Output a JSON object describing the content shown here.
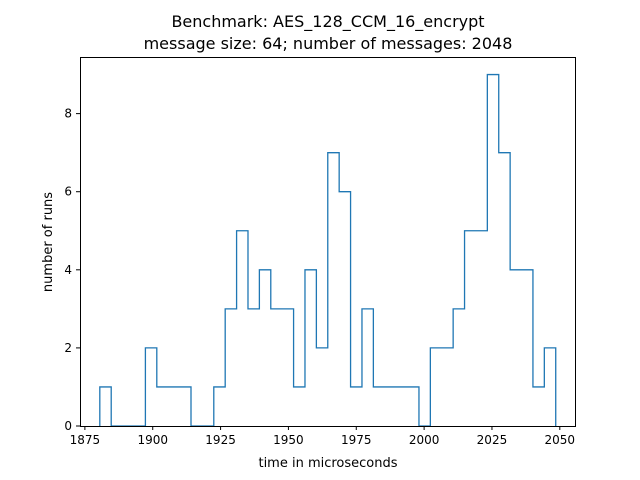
{
  "chart_data": {
    "type": "histogram",
    "title": "Benchmark: AES_128_CCM_16_encrypt",
    "subtitle": "message size: 64; number of messages: 2048",
    "xlabel": "time in microseconds",
    "ylabel": "number of runs",
    "xlim": [
      1873.2,
      2055.6
    ],
    "ylim": [
      0,
      9.45
    ],
    "xticks": [
      1875,
      1900,
      1925,
      1950,
      1975,
      2000,
      2025,
      2050
    ],
    "xtick_labels": [
      "1875",
      "1900",
      "1925",
      "1950",
      "1975",
      "2000",
      "2025",
      "2050"
    ],
    "yticks": [
      0,
      2,
      4,
      6,
      8
    ],
    "ytick_labels": [
      "0",
      "2",
      "4",
      "6",
      "8"
    ],
    "grid": false,
    "legend": "none",
    "series_color": "#1f77b4",
    "histtype": "step",
    "bin_edges": [
      1880.5,
      1884.7,
      1888.9,
      1893.1,
      1897.3,
      1901.5,
      1905.7,
      1909.9,
      1914.1,
      1918.3,
      1922.5,
      1926.7,
      1930.9,
      1935.1,
      1939.3,
      1943.5,
      1947.7,
      1951.9,
      1956.1,
      1960.3,
      1964.5,
      1968.7,
      1972.9,
      1977.1,
      1981.3,
      1985.5,
      1989.7,
      1993.9,
      1998.1,
      2002.3,
      2006.5,
      2010.7,
      2014.9,
      2019.1,
      2023.3,
      2027.5,
      2031.7,
      2035.9,
      2040.1,
      2044.3,
      2048.5
    ],
    "counts": [
      1,
      0,
      0,
      0,
      2,
      1,
      1,
      1,
      0,
      0,
      1,
      3,
      5,
      3,
      4,
      3,
      3,
      1,
      4,
      2,
      7,
      6,
      1,
      3,
      1,
      1,
      1,
      1,
      0,
      2,
      2,
      3,
      5,
      5,
      9,
      7,
      4,
      4,
      1,
      2
    ]
  }
}
